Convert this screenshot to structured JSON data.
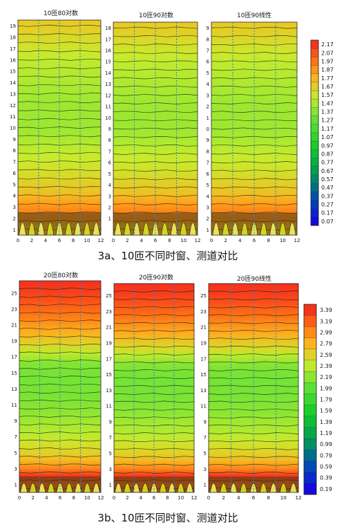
{
  "figure_captions": [
    "3a、10匝不同时窗、测道对比",
    "3b、10匝不同时窗、测道对比"
  ],
  "chart_data": [
    {
      "type": "heatmap",
      "group": "3a",
      "panels": [
        {
          "title": "10匝80对数",
          "transform": "log"
        },
        {
          "title": "10匝90对数",
          "transform": "log"
        },
        {
          "title": "10匝90线性",
          "transform": "linear"
        }
      ],
      "x_ticks": [
        "0",
        "2",
        "4",
        "6",
        "8",
        "10",
        "12"
      ],
      "xlim": [
        0,
        12
      ],
      "ylim": [
        0.5,
        19.5
      ],
      "y_ticks": [
        [
          "19",
          "18",
          "17",
          "16",
          "15",
          "14",
          "13",
          "12",
          "11",
          "10",
          "9",
          "8",
          "7",
          "6",
          "5",
          "4",
          "3",
          "2",
          "1"
        ],
        [
          "18",
          "17",
          "16",
          "15",
          "14",
          "13",
          "12",
          "11",
          "10",
          "9",
          "8",
          "7",
          "6",
          "5",
          "4",
          "3",
          "2",
          "1"
        ],
        [
          "9",
          "8",
          "7",
          "6",
          "5",
          "4",
          "3",
          "2",
          "1",
          "0",
          "9",
          "8",
          "7",
          "6",
          "5",
          "4",
          "3",
          "2",
          "1"
        ]
      ],
      "x_ticks_by_panel": [
        [
          "0",
          "2",
          "4",
          "6",
          "8",
          "10",
          "12"
        ],
        [
          "0",
          "2",
          "4",
          "6",
          "8",
          "10",
          "12"
        ],
        [
          "0",
          "2",
          "4",
          "6",
          "8",
          "10",
          "12"
        ]
      ],
      "legend_labels": [
        "2.17",
        "2.07",
        "1.97",
        "1.87",
        "1.77",
        "1.67",
        "1.57",
        "1.47",
        "1.37",
        "1.27",
        "1.17",
        "1.07",
        "0.97",
        "0.87",
        "0.77",
        "0.67",
        "0.57",
        "0.47",
        "0.37",
        "0.27",
        "0.17",
        "0.07"
      ],
      "legend_range": [
        0.07,
        2.17
      ],
      "value_profile_by_channel": {
        "channel": [
          1,
          2,
          3,
          4,
          5,
          6,
          7,
          8,
          9,
          10,
          12,
          14,
          16,
          17,
          18,
          19
        ],
        "value": [
          1.82,
          1.97,
          1.89,
          1.74,
          1.66,
          1.6,
          1.55,
          1.52,
          1.46,
          1.43,
          1.43,
          1.47,
          1.52,
          1.57,
          1.62,
          1.68
        ]
      },
      "survey_lines_x": [
        3,
        6,
        9
      ],
      "grid": false,
      "legend_position": "right"
    },
    {
      "type": "heatmap",
      "group": "3b",
      "panels": [
        {
          "title": "20匝80对数",
          "transform": "log"
        },
        {
          "title": "20匝90对数",
          "transform": "log"
        },
        {
          "title": "20匝90线性",
          "transform": "linear"
        }
      ],
      "x_ticks": [
        "0",
        "2",
        "4",
        "6",
        "8",
        "10",
        "12"
      ],
      "xlim": [
        0,
        12
      ],
      "ylim": [
        0,
        26.5
      ],
      "y_ticks": [
        [
          "25",
          "23",
          "21",
          "19",
          "17",
          "15",
          "13",
          "11",
          "9",
          "7",
          "5",
          "3",
          "1"
        ],
        [
          "25",
          "23",
          "21",
          "19",
          "17",
          "15",
          "13",
          "11",
          "9",
          "7",
          "5",
          "3",
          "1"
        ],
        [
          "25",
          "23",
          "21",
          "19",
          "17",
          "15",
          "13",
          "11",
          "9",
          "7",
          "5",
          "3",
          "1"
        ]
      ],
      "x_ticks_by_panel": [
        [
          "0",
          "2",
          "4",
          "6",
          "8",
          "10",
          "12"
        ],
        [
          "0",
          "2",
          "4",
          "6",
          "8",
          "10",
          "12"
        ],
        [
          "0",
          "2",
          "4",
          "6",
          "8",
          "10",
          "12"
        ]
      ],
      "legend_labels": [
        "3.39",
        "3.19",
        "2.99",
        "2.79",
        "2.59",
        "2.39",
        "2.19",
        "1.99",
        "1.79",
        "1.59",
        "1.39",
        "1.19",
        "0.99",
        "0.79",
        "0.59",
        "0.39",
        "0.19"
      ],
      "legend_range": [
        0.19,
        3.39
      ],
      "value_profile_by_channel": {
        "channel": [
          1,
          2,
          3,
          4,
          5,
          6,
          7,
          8,
          9,
          10,
          12,
          14,
          16,
          18,
          20,
          22,
          24,
          26
        ],
        "value": [
          3.2,
          3.4,
          3.0,
          2.75,
          2.6,
          2.5,
          2.4,
          2.33,
          2.27,
          2.2,
          2.12,
          2.1,
          2.12,
          2.5,
          2.8,
          3.05,
          3.25,
          3.39
        ]
      },
      "survey_lines_x": [
        3,
        6,
        9
      ],
      "grid": false,
      "legend_position": "right"
    }
  ]
}
